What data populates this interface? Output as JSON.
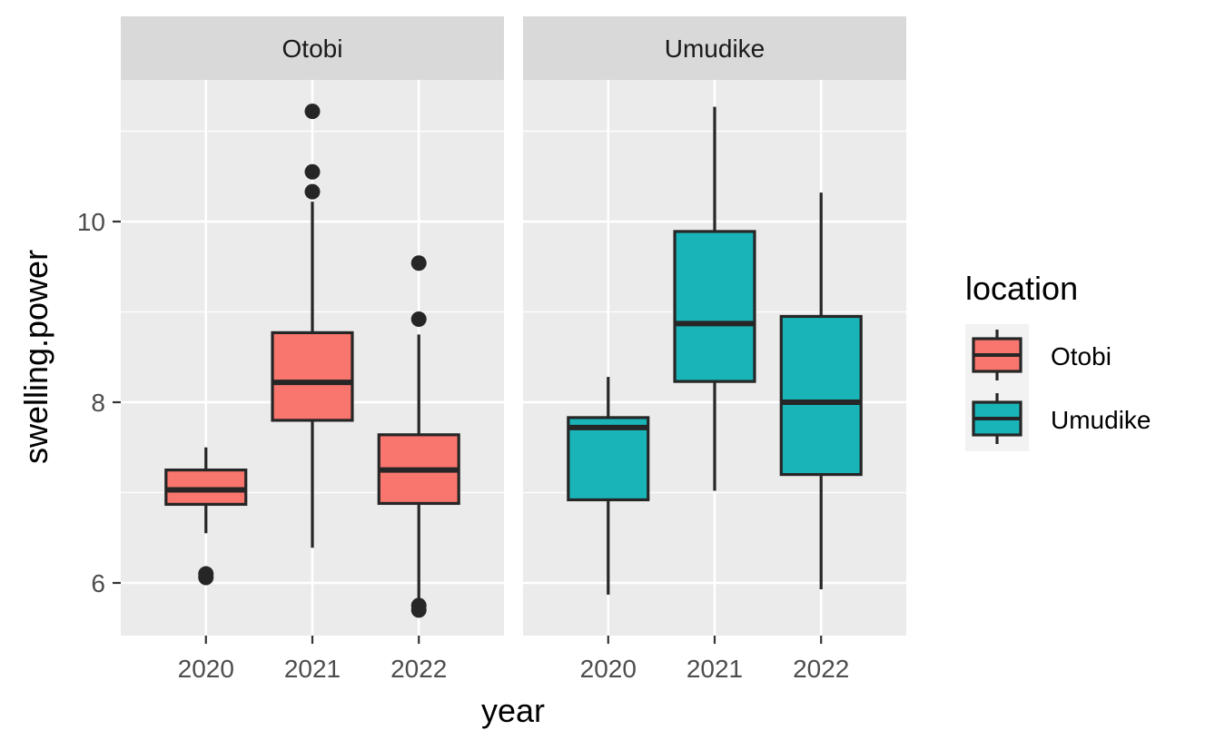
{
  "chart_data": {
    "type": "boxplot",
    "xlabel": "year",
    "ylabel": "swelling.power",
    "categories": [
      "2020",
      "2021",
      "2022"
    ],
    "y_ticks": [
      6,
      8,
      10
    ],
    "ylim": [
      5.4,
      11.5
    ],
    "legend": {
      "title": "location",
      "position": "right",
      "entries": [
        {
          "label": "Otobi",
          "color": "#F8766D"
        },
        {
          "label": "Umudike",
          "color": "#19B4B8"
        }
      ]
    },
    "panels": [
      {
        "name": "Otobi",
        "color": "#F8766D",
        "boxes": [
          {
            "year": "2020",
            "lower_whisker": 6.55,
            "q1": 6.87,
            "median": 7.03,
            "q3": 7.25,
            "upper_whisker": 7.5,
            "outliers": [
              6.06,
              6.1
            ]
          },
          {
            "year": "2021",
            "lower_whisker": 6.39,
            "q1": 7.8,
            "median": 8.22,
            "q3": 8.77,
            "upper_whisker": 10.22,
            "outliers": [
              10.33,
              10.55,
              11.22
            ]
          },
          {
            "year": "2022",
            "lower_whisker": 5.8,
            "q1": 6.88,
            "median": 7.25,
            "q3": 7.64,
            "upper_whisker": 8.75,
            "outliers": [
              5.7,
              5.75,
              8.92,
              9.54
            ]
          }
        ]
      },
      {
        "name": "Umudike",
        "color": "#19B4B8",
        "boxes": [
          {
            "year": "2020",
            "lower_whisker": 5.87,
            "q1": 6.92,
            "median": 7.72,
            "q3": 7.83,
            "upper_whisker": 8.28,
            "outliers": []
          },
          {
            "year": "2021",
            "lower_whisker": 7.02,
            "q1": 8.23,
            "median": 8.87,
            "q3": 9.89,
            "upper_whisker": 11.27,
            "outliers": []
          },
          {
            "year": "2022",
            "lower_whisker": 5.93,
            "q1": 7.2,
            "median": 8.0,
            "q3": 8.95,
            "upper_whisker": 10.32,
            "outliers": []
          }
        ]
      }
    ]
  }
}
